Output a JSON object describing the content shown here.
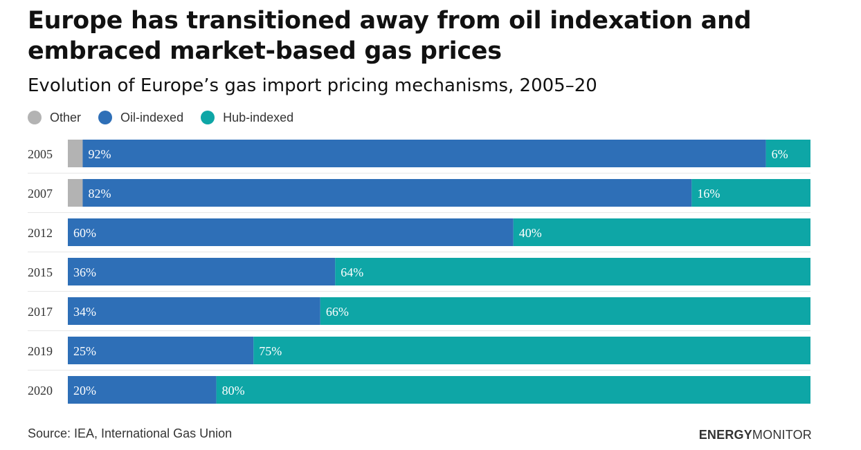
{
  "header": {
    "title": "Europe has transitioned away from oil indexation and embraced market-based gas prices",
    "subtitle": "Evolution of Europe’s gas import pricing mechanisms, 2005–20"
  },
  "legend": [
    {
      "label": "Other",
      "color": "#b3b3b3"
    },
    {
      "label": "Oil-indexed",
      "color": "#2e6fb7"
    },
    {
      "label": "Hub-indexed",
      "color": "#0ea6a6"
    }
  ],
  "chart_data": {
    "type": "bar",
    "orientation": "horizontal",
    "stacked": true,
    "categories": [
      "2005",
      "2007",
      "2012",
      "2015",
      "2017",
      "2019",
      "2020"
    ],
    "series": [
      {
        "name": "Other",
        "color": "#b3b3b3",
        "values": [
          2,
          2,
          0,
          0,
          0,
          0,
          0
        ]
      },
      {
        "name": "Oil-indexed",
        "color": "#2e6fb7",
        "values": [
          92,
          82,
          60,
          36,
          34,
          25,
          20
        ]
      },
      {
        "name": "Hub-indexed",
        "color": "#0ea6a6",
        "values": [
          6,
          16,
          40,
          64,
          66,
          75,
          80
        ]
      }
    ],
    "data_labels": {
      "Oil-indexed": [
        "92%",
        "82%",
        "60%",
        "36%",
        "34%",
        "25%",
        "20%"
      ],
      "Hub-indexed": [
        "6%",
        "16%",
        "40%",
        "64%",
        "66%",
        "75%",
        "80%"
      ]
    },
    "xlim": [
      0,
      100
    ],
    "grid": false,
    "legend_position": "top-left"
  },
  "footer": {
    "source": "Source: IEA, International Gas Union",
    "brand_bold": "ENERGY",
    "brand_light": "MONITOR"
  }
}
